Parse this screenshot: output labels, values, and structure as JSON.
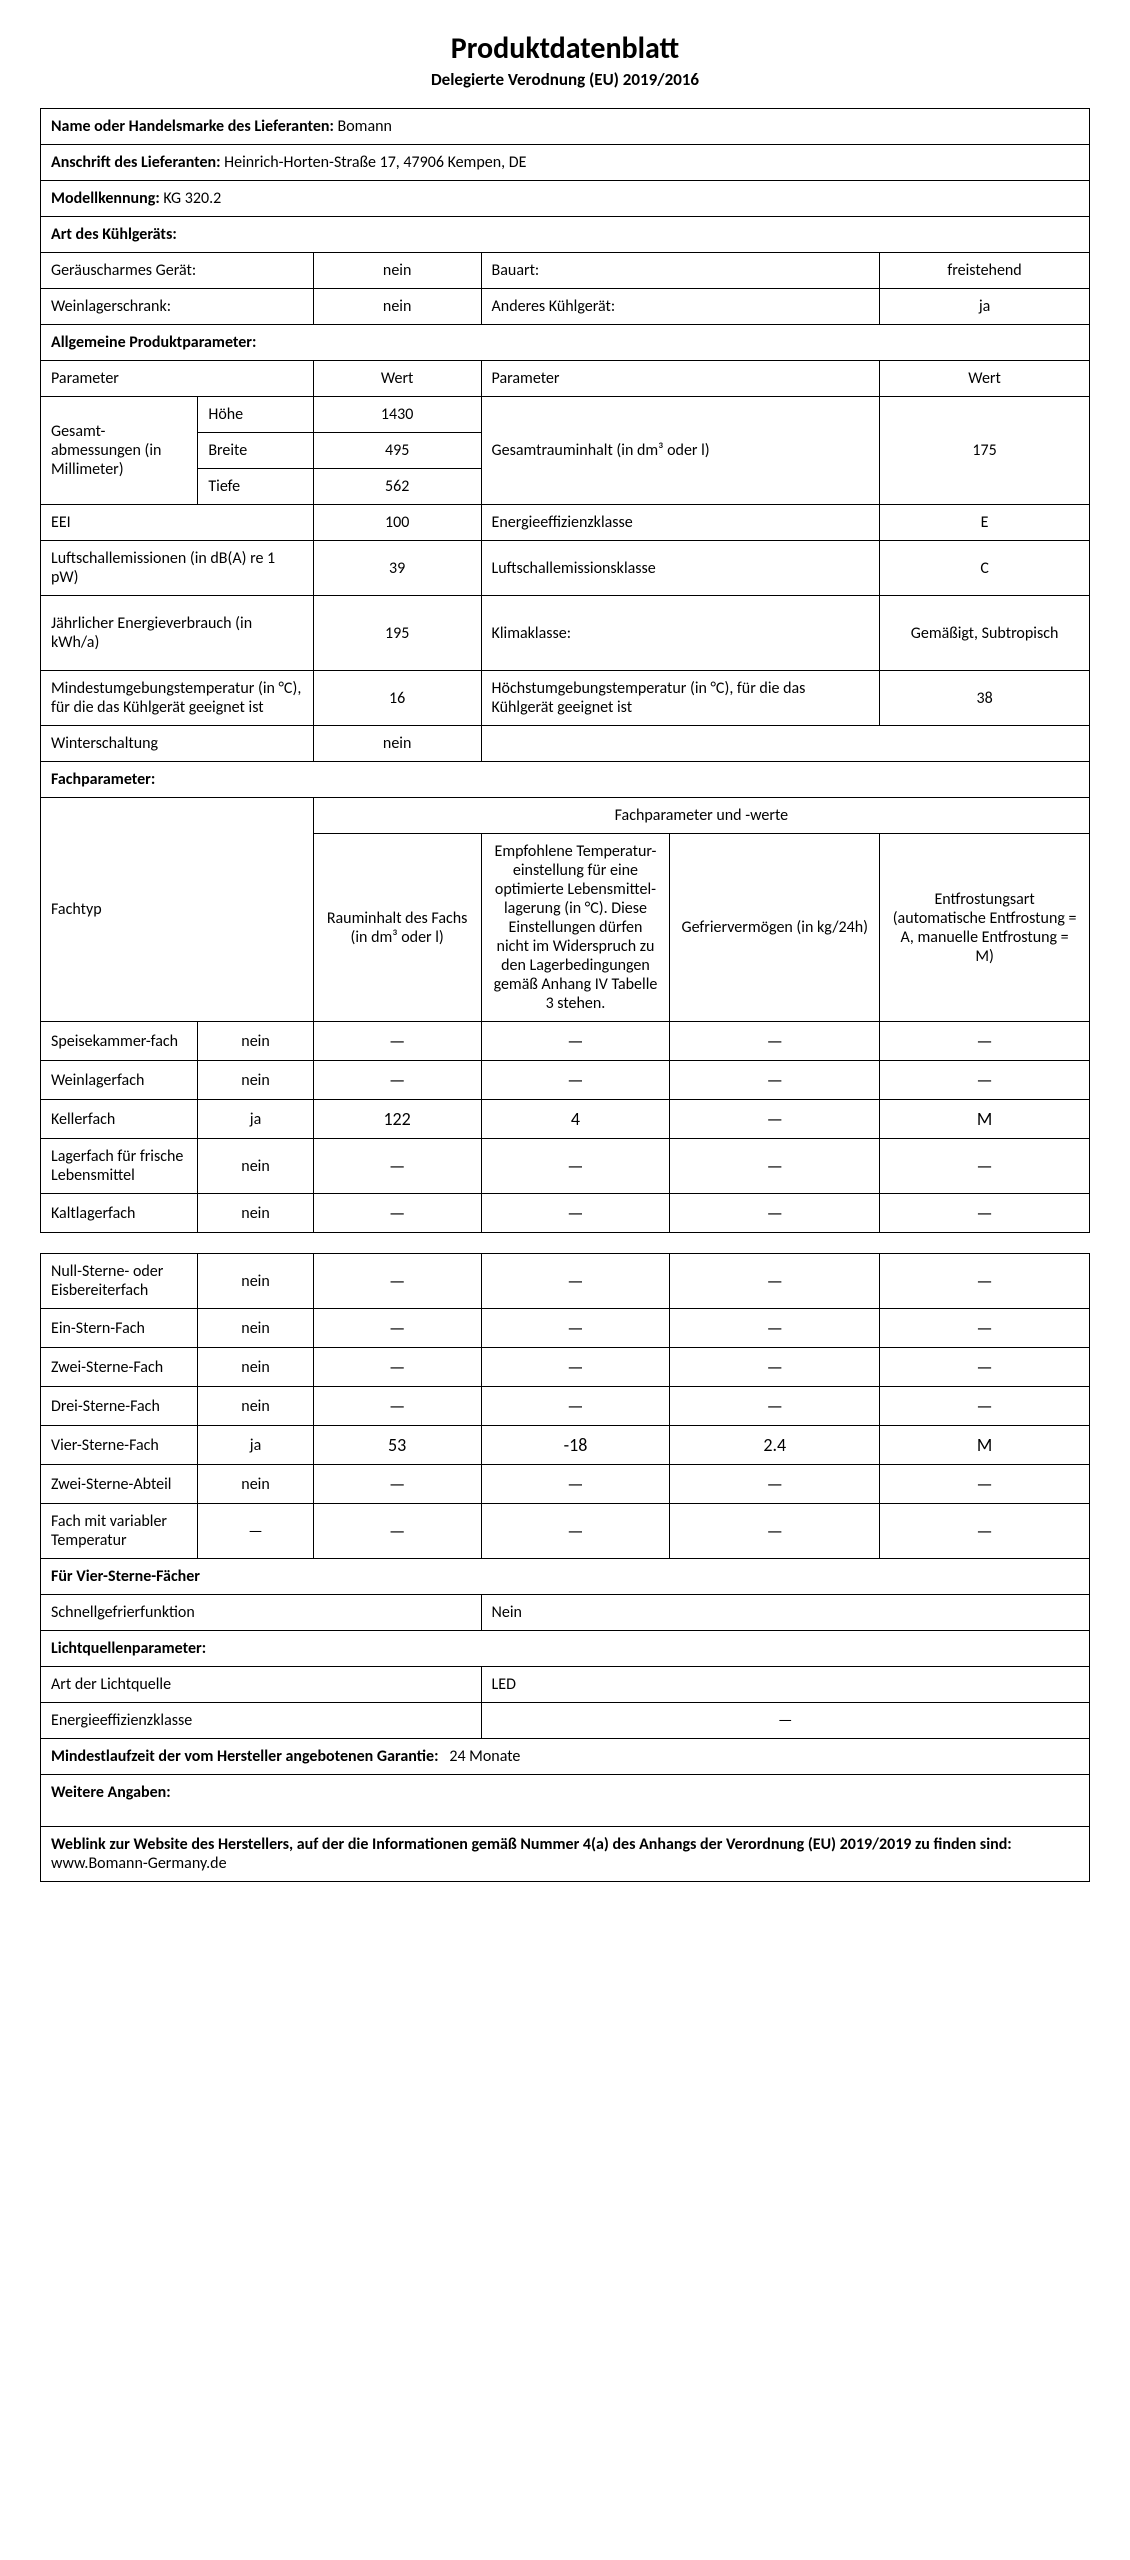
{
  "title": "Produktdatenblatt",
  "subtitle": "Delegierte Verodnung (EU) 2019/2016",
  "supplier_name_label": "Name oder Handelsmarke des Lieferanten:",
  "supplier_name_value": "Bomann",
  "supplier_address_label": "Anschrift des Lieferanten:",
  "supplier_address_value": "Heinrich-Horten-Straße 17, 47906 Kempen, DE",
  "model_label": "Modellkennung:",
  "model_value": "KG 320.2",
  "type_header": "Art des Kühlgeräts:",
  "low_noise_label": "Geräuscharmes Gerät:",
  "low_noise_value": "nein",
  "construction_label": "Bauart:",
  "construction_value": "freistehend",
  "wine_label": "Weinlagerschrank:",
  "wine_value": "nein",
  "other_label": "Anderes Kühlgerät:",
  "other_value": "ja",
  "general_header": "Allgemeine Produktparameter:",
  "parameter_label": "Parameter",
  "value_label": "Wert",
  "dimensions_label": "Gesamt-abmessungen (in Millimeter)",
  "height_label": "Höhe",
  "height_value": "1430",
  "width_label": "Breite",
  "width_value": "495",
  "depth_label": "Tiefe",
  "depth_value": "562",
  "total_volume_label": "Gesamtrauminhalt (in dm³ oder l)",
  "total_volume_value": "175",
  "eei_label": "EEI",
  "eei_value": "100",
  "efficiency_class_label": "Energieeffizienzklasse",
  "efficiency_class_value": "E",
  "noise_label": "Luftschallemissionen (in dB(A) re 1 pW)",
  "noise_value": "39",
  "noise_class_label": "Luftschallemissionsklasse",
  "noise_class_value": "C",
  "annual_energy_label": "Jährlicher Energieverbrauch (in kWh/a)",
  "annual_energy_value": "195",
  "climate_class_label": "Klimaklasse:",
  "climate_class_value": "Gemäßigt, Subtropisch",
  "min_temp_label": "Mindestumgebungstemperatur (in °C), für die das Kühlgerät geeignet ist",
  "min_temp_value": "16",
  "max_temp_label": "Höchstumgebungstemperatur (in °C), für die das Kühlgerät geeignet ist",
  "max_temp_value": "38",
  "winter_label": "Winterschaltung",
  "winter_value": "nein",
  "compartment_header": "Fachparameter:",
  "compartment_values_header": "Fachparameter und -werte",
  "fachtyp_label": "Fachtyp",
  "col_volume": "Rauminhalt des Fachs (in dm³ oder l)",
  "col_temp": "Empfohlene Temperatur-einstellung für eine optimierte Lebensmittel-lagerung (in °C). Diese Einstellungen dürfen nicht im Widerspruch zu den Lagerbedingungen gemäß Anhang IV Tabelle 3 stehen.",
  "col_freeze": "Gefriervermögen (in kg/24h)",
  "col_defrost": "Entfrostungsart (automatische Entfrostung = A, manuelle Entfrostung = M)",
  "rows1": [
    {
      "name": "Speisekammer-fach",
      "present": "nein",
      "vol": "—",
      "temp": "—",
      "freeze": "—",
      "defrost": "—"
    },
    {
      "name": "Weinlagerfach",
      "present": "nein",
      "vol": "—",
      "temp": "—",
      "freeze": "—",
      "defrost": "—"
    },
    {
      "name": "Kellerfach",
      "present": "ja",
      "vol": "122",
      "temp": "4",
      "freeze": "—",
      "defrost": "M"
    },
    {
      "name": "Lagerfach für frische Lebensmittel",
      "present": "nein",
      "vol": "—",
      "temp": "—",
      "freeze": "—",
      "defrost": "—"
    },
    {
      "name": "Kaltlagerfach",
      "present": "nein",
      "vol": "—",
      "temp": "—",
      "freeze": "—",
      "defrost": "—"
    }
  ],
  "rows2": [
    {
      "name": "Null-Sterne- oder Eisbereiterfach",
      "present": "nein",
      "vol": "—",
      "temp": "—",
      "freeze": "—",
      "defrost": "—"
    },
    {
      "name": "Ein-Stern-Fach",
      "present": "nein",
      "vol": "—",
      "temp": "—",
      "freeze": "—",
      "defrost": "—"
    },
    {
      "name": "Zwei-Sterne-Fach",
      "present": "nein",
      "vol": "—",
      "temp": "—",
      "freeze": "—",
      "defrost": "—"
    },
    {
      "name": "Drei-Sterne-Fach",
      "present": "nein",
      "vol": "—",
      "temp": "—",
      "freeze": "—",
      "defrost": "—"
    },
    {
      "name": "Vier-Sterne-Fach",
      "present": "ja",
      "vol": "53",
      "temp": "-18",
      "freeze": "2.4",
      "defrost": "M"
    },
    {
      "name": "Zwei-Sterne-Abteil",
      "present": "nein",
      "vol": "—",
      "temp": "—",
      "freeze": "—",
      "defrost": "—"
    },
    {
      "name": "Fach mit variabler Temperatur",
      "present": "—",
      "vol": "—",
      "temp": "—",
      "freeze": "—",
      "defrost": "—"
    }
  ],
  "four_star_header": "Für Vier-Sterne-Fächer",
  "quick_freeze_label": "Schnellgefrierfunktion",
  "quick_freeze_value": "Nein",
  "light_header": "Lichtquellenparameter:",
  "light_type_label": "Art der Lichtquelle",
  "light_type_value": "LED",
  "light_class_label": "Energieeffizienzklasse",
  "light_class_value": "—",
  "warranty_label": "Mindestlaufzeit der vom Hersteller angebotenen Garantie:",
  "warranty_value": "24 Monate",
  "additional_label": "Weitere Angaben:",
  "weblink_label": "Weblink zur Website des Herstellers, auf der die Informationen gemäß Nummer 4(a) des Anhangs der Verordnung (EU) 2019/2019 zu finden sind:",
  "weblink_value": "www.Bomann-Germany.de"
}
